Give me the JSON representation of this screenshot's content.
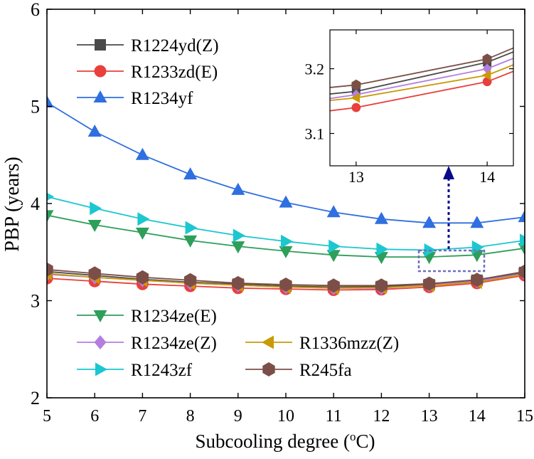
{
  "chart_data": {
    "type": "line",
    "xlabel": "Subcooling degree (",
    "xlabel_sup": "o",
    "xlabel_tail": "C)",
    "ylabel": "PBP (years)",
    "xlim": [
      5,
      15
    ],
    "ylim": [
      2,
      6
    ],
    "x_ticks": [
      "5",
      "6",
      "7",
      "8",
      "9",
      "10",
      "11",
      "12",
      "13",
      "14",
      "15"
    ],
    "y_ticks": [
      "2",
      "3",
      "4",
      "5",
      "6"
    ],
    "x": [
      5,
      6,
      7,
      8,
      9,
      10,
      11,
      12,
      13,
      14,
      15
    ],
    "series": [
      {
        "name": "R1224yd(Z)",
        "color": "#4a4a4a",
        "marker": "square",
        "values": [
          3.3,
          3.26,
          3.22,
          3.19,
          3.17,
          3.15,
          3.14,
          3.145,
          3.165,
          3.21,
          3.29
        ]
      },
      {
        "name": "R1233zd(E)",
        "color": "#e8403c",
        "marker": "circle",
        "values": [
          3.23,
          3.2,
          3.17,
          3.15,
          3.13,
          3.12,
          3.11,
          3.115,
          3.14,
          3.18,
          3.26
        ]
      },
      {
        "name": "R1234yf",
        "color": "#2f6fe0",
        "marker": "triangle-up",
        "values": [
          5.04,
          4.74,
          4.5,
          4.3,
          4.14,
          4.01,
          3.91,
          3.84,
          3.8,
          3.8,
          3.86
        ]
      },
      {
        "name": "R1234ze(E)",
        "color": "#2e9e5b",
        "marker": "triangle-down",
        "values": [
          3.88,
          3.78,
          3.7,
          3.62,
          3.56,
          3.51,
          3.47,
          3.45,
          3.45,
          3.47,
          3.54
        ]
      },
      {
        "name": "R1234ze(Z)",
        "color": "#b47ee0",
        "marker": "diamond",
        "values": [
          3.27,
          3.24,
          3.21,
          3.18,
          3.16,
          3.14,
          3.13,
          3.13,
          3.16,
          3.2,
          3.28
        ]
      },
      {
        "name": "R1336mzz(Z)",
        "color": "#c99a06",
        "marker": "triangle-left",
        "values": [
          3.28,
          3.24,
          3.21,
          3.18,
          3.16,
          3.14,
          3.13,
          3.135,
          3.155,
          3.19,
          3.27
        ]
      },
      {
        "name": "R1243zf",
        "color": "#1cc7d0",
        "marker": "triangle-right",
        "values": [
          4.07,
          3.95,
          3.84,
          3.75,
          3.67,
          3.61,
          3.56,
          3.53,
          3.52,
          3.55,
          3.62
        ]
      },
      {
        "name": "R245fa",
        "color": "#7b4f47",
        "marker": "hexagon",
        "values": [
          3.32,
          3.28,
          3.24,
          3.21,
          3.18,
          3.165,
          3.155,
          3.155,
          3.175,
          3.215,
          3.3
        ]
      }
    ],
    "inset": {
      "xlim": [
        12.8,
        14.2
      ],
      "ylim": [
        3.05,
        3.26
      ],
      "x_ticks": [
        "13",
        "14"
      ],
      "y_ticks": [
        "3.1",
        "3.2"
      ]
    },
    "legend_top": [
      "R1224yd(Z)",
      "R1233zd(E)",
      "R1234yf"
    ],
    "legend_bottom": [
      "R1234ze(E)",
      "R1234ze(Z)",
      "R1336mzz(Z)",
      "R1243zf",
      "R245fa"
    ]
  }
}
